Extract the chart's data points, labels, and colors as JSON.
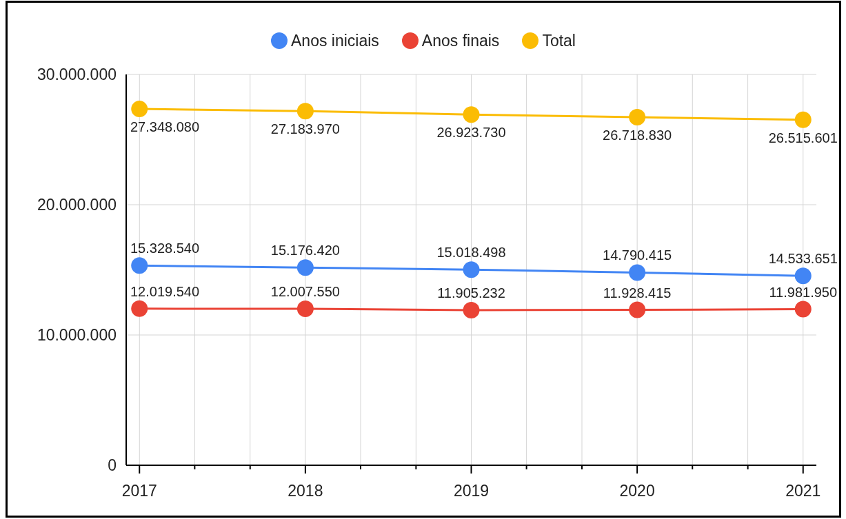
{
  "chart_data": {
    "type": "line",
    "x": [
      2017,
      2018,
      2019,
      2020,
      2021
    ],
    "xlim": [
      2016.92,
      2021.08
    ],
    "xticks": [
      2017,
      {
        "value": 2017.333,
        "label": null
      },
      {
        "value": 2017.667,
        "label": null
      },
      2018,
      {
        "value": 2018.333,
        "label": null
      },
      {
        "value": 2018.667,
        "label": null
      },
      2019,
      {
        "value": 2019.333,
        "label": null
      },
      {
        "value": 2019.667,
        "label": null
      },
      2020,
      {
        "value": 2020.333,
        "label": null
      },
      {
        "value": 2020.667,
        "label": null
      },
      2021
    ],
    "ylim": [
      0,
      30000000
    ],
    "yticks": [
      0,
      {
        "value": 10000000,
        "label": "10.000.000"
      },
      {
        "value": 20000000,
        "label": "20.000.000"
      },
      {
        "value": 30000000,
        "label": "30.000.000"
      }
    ],
    "series": [
      {
        "name": "Anos iniciais",
        "color": "#4285f4",
        "values": [
          15328540,
          15176420,
          15018498,
          14790415,
          14533651
        ],
        "value_labels": [
          "15.328.540",
          "15.176.420",
          "15.018.498",
          "14.790.415",
          "14.533.651"
        ]
      },
      {
        "name": "Anos finais",
        "color": "#ea4335",
        "values": [
          12019540,
          12007550,
          11905232,
          11928415,
          11981950
        ],
        "value_labels": [
          "12.019.540",
          "12.007.550",
          "11.905.232",
          "11.928.415",
          "11.981.950"
        ]
      },
      {
        "name": "Total",
        "color": "#fbbc04",
        "values": [
          27348080,
          27183970,
          26923730,
          26718830,
          26515601
        ],
        "value_labels": [
          "27.348.080",
          "27.183.970",
          "26.923.730",
          "26.718.830",
          "26.515.601"
        ]
      }
    ],
    "legend": "top",
    "grid": true,
    "marker": "circle",
    "line_style": "solid"
  }
}
